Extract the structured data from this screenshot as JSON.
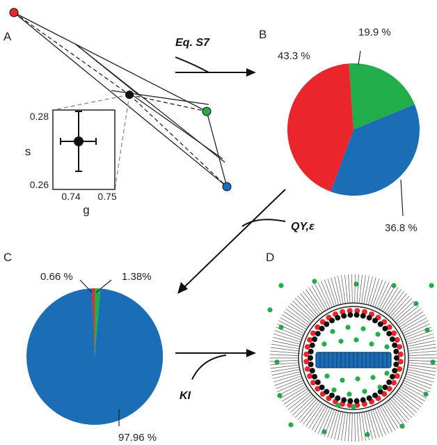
{
  "panels": {
    "a": "A",
    "b": "B",
    "c": "C",
    "d": "D"
  },
  "arrows": {
    "a_to_b": "Eq. S7",
    "b_to_c": "QY,ε",
    "c_to_d": "KI"
  },
  "inset": {
    "y_label": "s",
    "x_label": "g",
    "y_ticks": [
      "0.28",
      "0.26"
    ],
    "x_ticks": [
      "0.74",
      "0.75"
    ]
  },
  "colors": {
    "red": "#e8262b",
    "green": "#22ad4b",
    "blue": "#1b6db5",
    "black": "#111111"
  },
  "pie_b": {
    "slices": [
      {
        "label": "19.9 %",
        "value": 19.9,
        "color": "green"
      },
      {
        "label": "36.8 %",
        "value": 36.8,
        "color": "blue"
      },
      {
        "label": "43.3 %",
        "value": 43.3,
        "color": "red"
      }
    ]
  },
  "pie_c": {
    "slices": [
      {
        "label": "0.66 %",
        "value": 0.66,
        "color": "red"
      },
      {
        "label": "1.38%",
        "value": 1.38,
        "color": "green"
      },
      {
        "label": "97.96 %",
        "value": 97.96,
        "color": "blue"
      }
    ]
  }
}
